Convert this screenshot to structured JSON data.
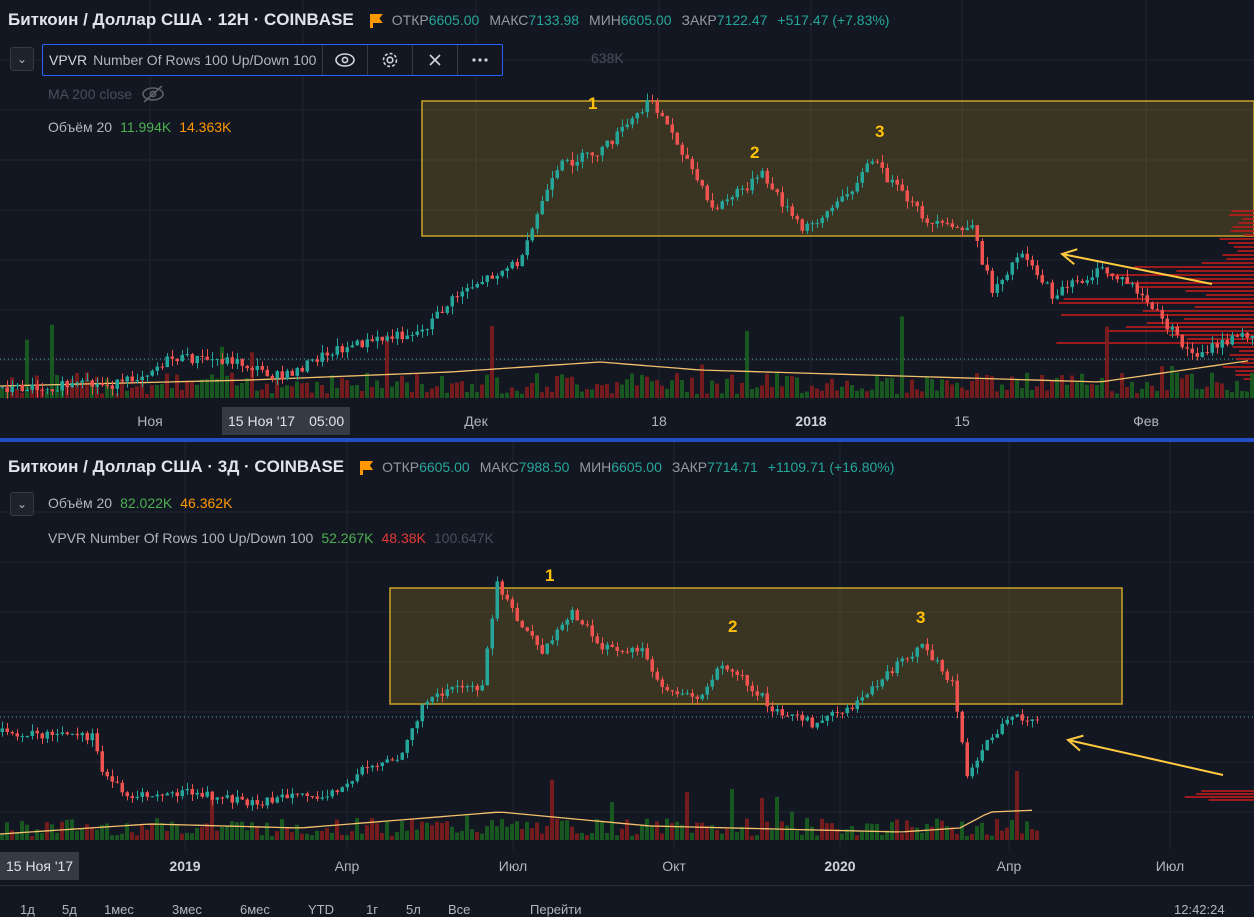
{
  "pane1": {
    "symbol": "Биткоин / Доллар США · 12H · COINBASE",
    "ohlc": {
      "open_label": "ОТКР",
      "open": "6605.00",
      "high_label": "МАКС",
      "high": "7133.98",
      "low_label": "МИН",
      "low": "6605.00",
      "close_label": "ЗАКР",
      "close": "7122.47",
      "change": "+517.47 (+7.83%)"
    },
    "vpvr": {
      "name": "VPVR",
      "params": "Number Of Rows 100 Up/Down 100",
      "total_partial": "638K"
    },
    "ma": {
      "label": "MA 200 close"
    },
    "volume": {
      "label": "Объём 20",
      "v1": "11.994K",
      "v2": "14.363K"
    },
    "pattern_labels": [
      "1",
      "2",
      "3"
    ],
    "xaxis": {
      "ticks": [
        "Ноя",
        "Дек",
        "18",
        "2018",
        "15",
        "Фев"
      ],
      "crosshair_date": "15 Ноя '17",
      "crosshair_time": "05:00"
    }
  },
  "pane2": {
    "symbol": "Биткоин / Доллар США · 3Д · COINBASE",
    "ohlc": {
      "open_label": "ОТКР",
      "open": "6605.00",
      "high_label": "МАКС",
      "high": "7988.50",
      "low_label": "МИН",
      "low": "6605.00",
      "close_label": "ЗАКР",
      "close": "7714.71",
      "change": "+1109.71 (+16.80%)"
    },
    "volume": {
      "label": "Объём 20",
      "v1": "82.022K",
      "v2": "46.362K"
    },
    "vpvr": {
      "name": "VPVR",
      "params": "Number Of Rows 100 Up/Down 100",
      "up": "52.267K",
      "down": "48.38K",
      "total": "100.647K"
    },
    "pattern_labels": [
      "1",
      "2",
      "3"
    ],
    "xaxis": {
      "ticks": [
        "2019",
        "Апр",
        "Июл",
        "Окт",
        "2020",
        "Апр",
        "Июл"
      ],
      "crosshair_date": "15 Ноя '17"
    }
  },
  "bottom_bar": {
    "ranges": [
      "1д",
      "5д",
      "1мес",
      "3мес",
      "6мес",
      "YTD",
      "1г",
      "5л",
      "Все"
    ],
    "goto": "Перейти",
    "clock": "12:42:24"
  },
  "icons": [
    "eye-icon",
    "gear-icon",
    "close-icon",
    "more-icon",
    "eye-off-icon",
    "chevron-down-icon",
    "flag-icon"
  ],
  "colors": {
    "bull": "#26a69a",
    "bear": "#ef5350",
    "box": "#c9a227",
    "arrow": "#ffc940",
    "ma": "#f5c16c"
  }
}
